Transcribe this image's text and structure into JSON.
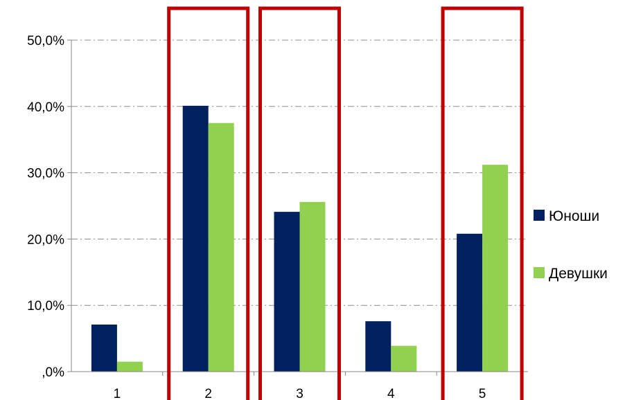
{
  "chart_data": {
    "type": "bar",
    "categories": [
      "1",
      "2",
      "3",
      "4",
      "5"
    ],
    "series": [
      {
        "name": "Юноши",
        "values": [
          7.1,
          40.1,
          24.1,
          7.6,
          20.8
        ],
        "color": "#002060"
      },
      {
        "name": "Девушки",
        "values": [
          1.5,
          37.5,
          25.6,
          3.9,
          31.2
        ],
        "color": "#92D050"
      }
    ],
    "y_ticks": [
      ",0%",
      "10,0%",
      "20,0%",
      "30,0%",
      "40,0%",
      "50,0%"
    ],
    "ylim": [
      0,
      50
    ],
    "grid": true,
    "grid_style": "dash-dot",
    "legend_position": "right",
    "highlighted_categories": [
      "2",
      "3",
      "5"
    ],
    "highlight_color": "#C00000",
    "title": "",
    "xlabel": "",
    "ylabel": ""
  }
}
